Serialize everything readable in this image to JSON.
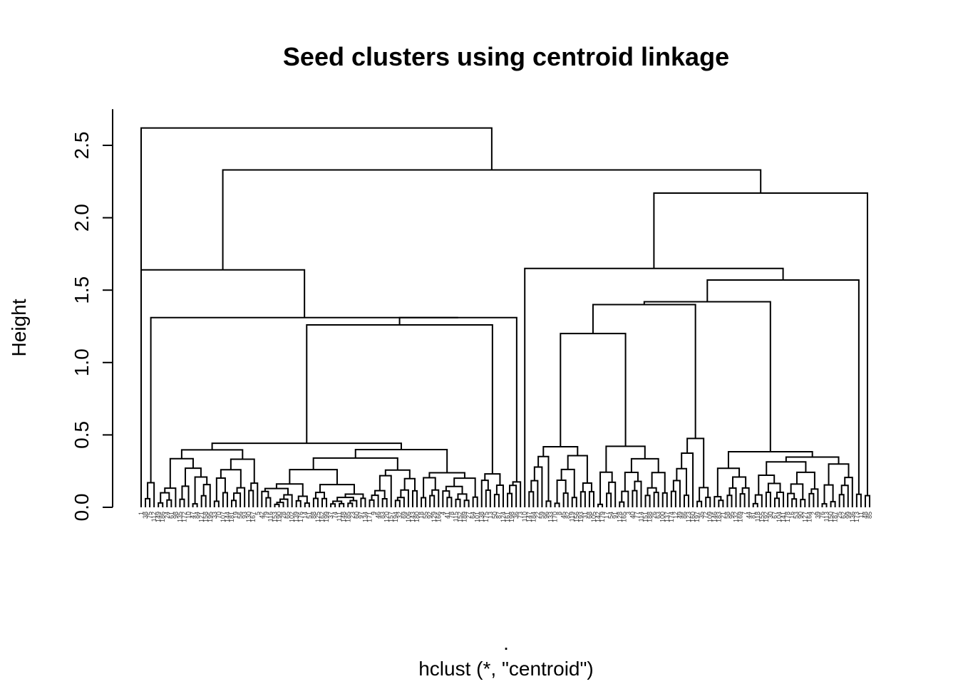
{
  "chart_data": {
    "type": "dendrogram",
    "title": "Seed clusters using centroid linkage",
    "xlabel": "hclust (*, \"centroid\")",
    "xlabel_top": ".",
    "ylabel": "Height",
    "ylim": [
      0,
      2.75
    ],
    "yticks": [
      "0.0",
      "0.5",
      "1.0",
      "1.5",
      "2.0",
      "2.5"
    ],
    "leaf_count": 170,
    "merge_heights_major": [
      {
        "label": "root",
        "height": 2.62
      },
      {
        "label": "left-main",
        "height": 2.33
      },
      {
        "label": "right-main",
        "height": 2.17
      },
      {
        "label": "left-sub",
        "height": 1.64
      },
      {
        "label": "right-sub-a",
        "height": 1.65
      },
      {
        "label": "right-sub-b",
        "height": 1.57
      },
      {
        "label": "right-far",
        "height": 1.55
      },
      {
        "label": "right-sub-c",
        "height": 1.42
      },
      {
        "label": "right-sub-d",
        "height": 1.4
      },
      {
        "label": "left-sub-b",
        "height": 1.31
      },
      {
        "label": "right-sub-e",
        "height": 1.38
      },
      {
        "label": "right-far-b",
        "height": 1.31
      },
      {
        "label": "left-sub-c",
        "height": 1.26
      },
      {
        "label": "right-sub-f",
        "height": 1.2
      },
      {
        "label": "left-sub-d",
        "height": 1.13
      }
    ]
  }
}
